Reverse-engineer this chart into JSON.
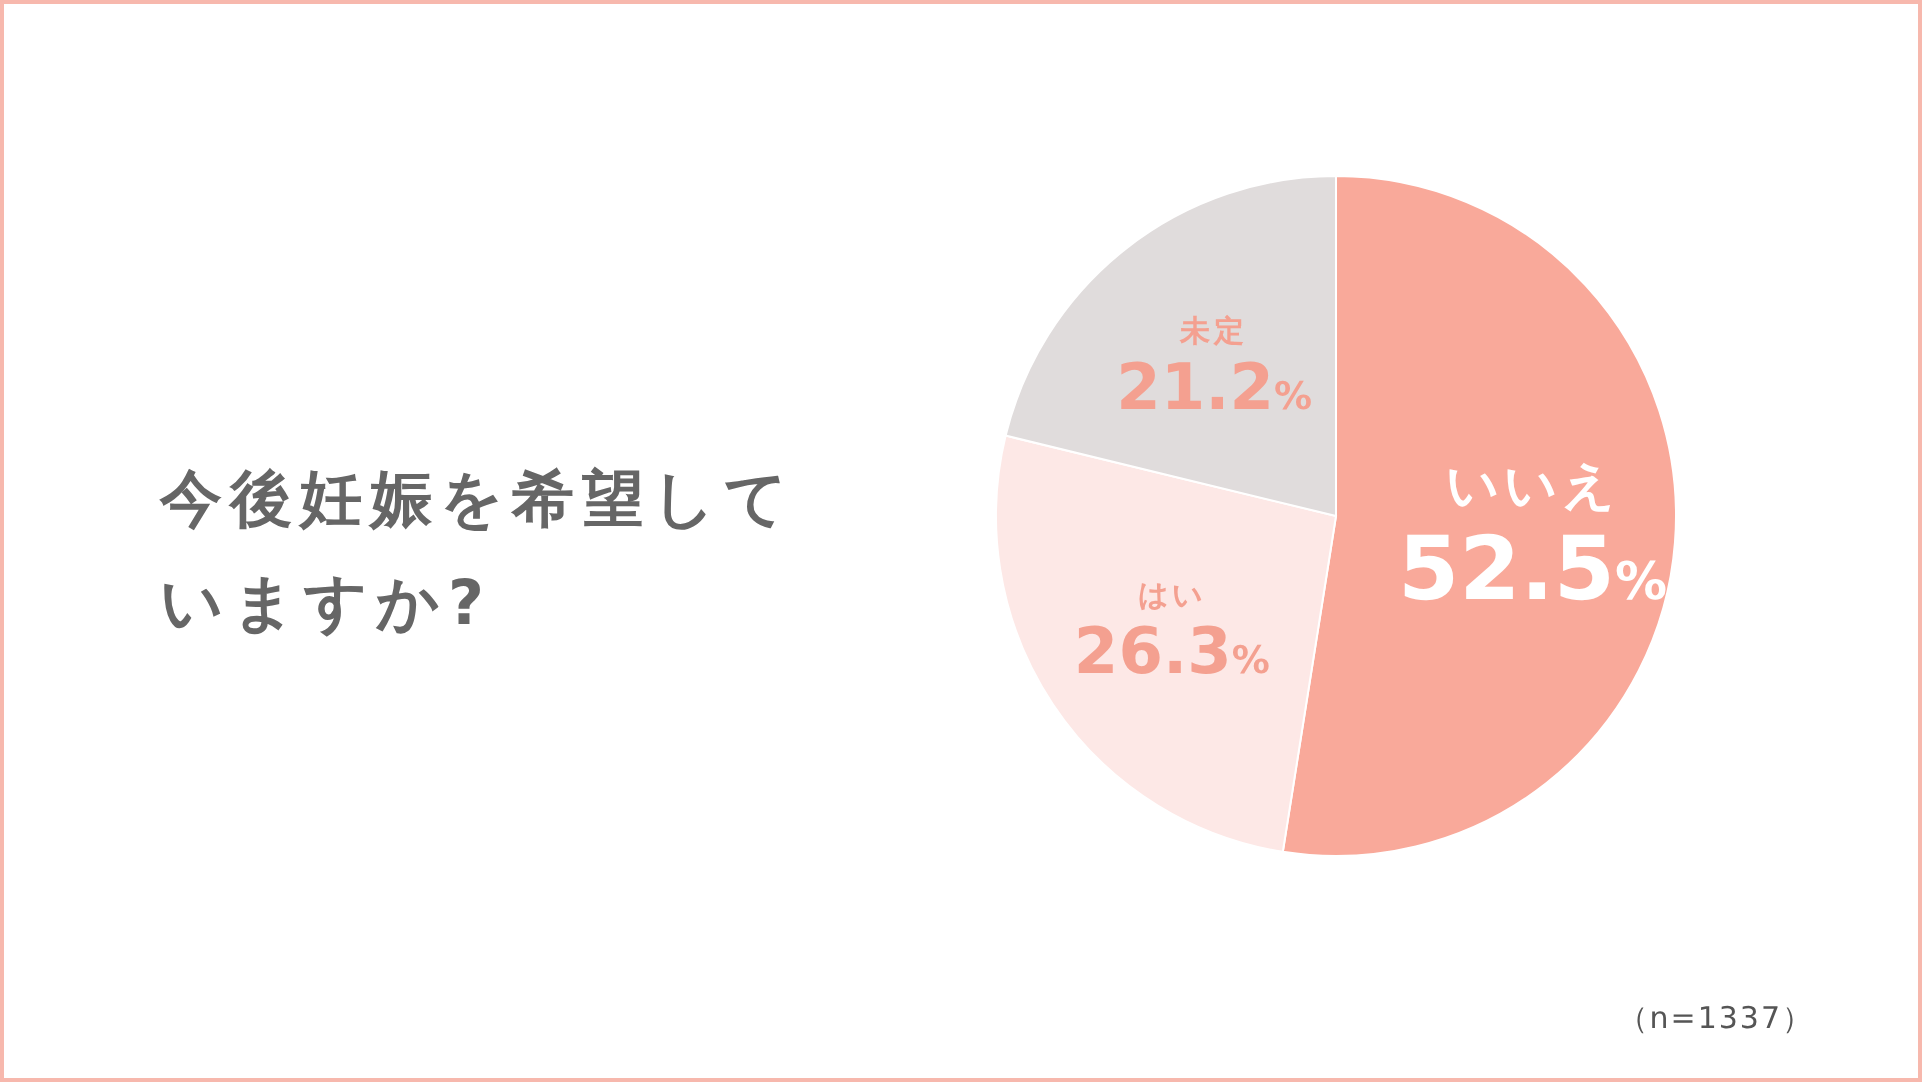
{
  "chart_data": {
    "type": "pie",
    "title": "今後妊娠を希望していますか?",
    "categories": [
      "いいえ",
      "はい",
      "未定"
    ],
    "values": [
      52.5,
      26.3,
      21.2
    ],
    "colors": [
      "#f9a99a",
      "#fde8e6",
      "#e0dcdc"
    ],
    "value_labels": [
      "52.5%",
      "26.3%",
      "21.2%"
    ],
    "annotations": [
      "（n=1337）"
    ]
  }
}
